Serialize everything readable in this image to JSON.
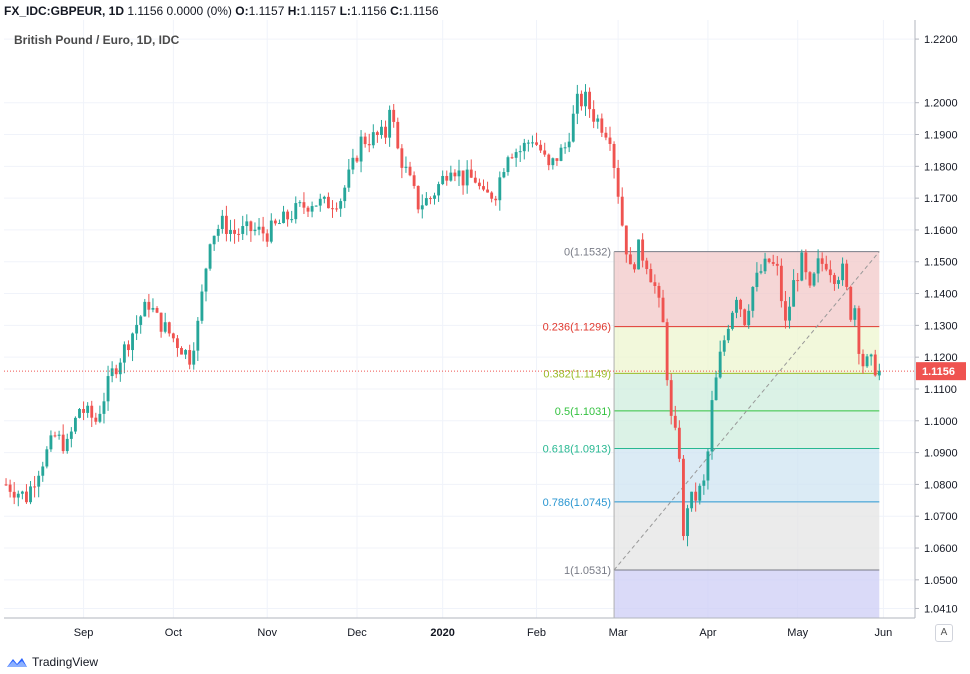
{
  "header": {
    "symbol": "FX_IDC:GBPEUR, 1D",
    "last": "1.1156",
    "change": "0.0000 (0%)",
    "o_label": "O:",
    "o": "1.1157",
    "h_label": "H:",
    "h": "1.1157",
    "l_label": "L:",
    "l": "1.1156",
    "c_label": "C:",
    "c": "1.1156"
  },
  "chart_title": "British Pound / Euro, 1D, IDC",
  "footer": {
    "brand": "TradingView"
  },
  "autoscale_label": "A",
  "colors": {
    "up": "#26a69a",
    "down": "#ef5350",
    "grid": "#f0f3fa",
    "axis": "#b2b5be",
    "price_label_bg": "#ef5350"
  },
  "chart_data": {
    "type": "candlestick",
    "ylim": [
      1.038,
      1.226
    ],
    "y_ticks": [
      1.22,
      1.2,
      1.19,
      1.18,
      1.17,
      1.16,
      1.15,
      1.14,
      1.13,
      1.12,
      1.11,
      1.1,
      1.09,
      1.08,
      1.07,
      1.06,
      1.05,
      1.041
    ],
    "x_ticks": [
      "Sep",
      "Oct",
      "Nov",
      "Dec",
      "2020",
      "Feb",
      "Mar",
      "Apr",
      "May",
      "Jun"
    ],
    "current_price": "1.1156",
    "anchors": [
      [
        0,
        1.08
      ],
      [
        5,
        1.076
      ],
      [
        8,
        1.085
      ],
      [
        12,
        1.095
      ],
      [
        15,
        1.092
      ],
      [
        18,
        1.104
      ],
      [
        22,
        1.1
      ],
      [
        26,
        1.115
      ],
      [
        28,
        1.12
      ],
      [
        33,
        1.133
      ],
      [
        35,
        1.137
      ],
      [
        37,
        1.132
      ],
      [
        41,
        1.126
      ],
      [
        45,
        1.12
      ],
      [
        47,
        1.13
      ],
      [
        50,
        1.158
      ],
      [
        53,
        1.162
      ],
      [
        56,
        1.159
      ],
      [
        60,
        1.16
      ],
      [
        64,
        1.159
      ],
      [
        67,
        1.162
      ],
      [
        71,
        1.166
      ],
      [
        75,
        1.169
      ],
      [
        78,
        1.168
      ],
      [
        82,
        1.17
      ],
      [
        85,
        1.18
      ],
      [
        87,
        1.188
      ],
      [
        90,
        1.189
      ],
      [
        93,
        1.19
      ],
      [
        94,
        1.2
      ],
      [
        96,
        1.185
      ],
      [
        99,
        1.175
      ],
      [
        101,
        1.168
      ],
      [
        104,
        1.17
      ],
      [
        107,
        1.176
      ],
      [
        109,
        1.181
      ],
      [
        112,
        1.176
      ],
      [
        115,
        1.176
      ],
      [
        117,
        1.17
      ],
      [
        120,
        1.172
      ],
      [
        123,
        1.185
      ],
      [
        126,
        1.185
      ],
      [
        129,
        1.189
      ],
      [
        131,
        1.185
      ],
      [
        133,
        1.179
      ],
      [
        135,
        1.183
      ],
      [
        137,
        1.186
      ],
      [
        140,
        1.2
      ],
      [
        142,
        1.201
      ],
      [
        144,
        1.196
      ],
      [
        146,
        1.193
      ],
      [
        148,
        1.19
      ],
      [
        150,
        1.172
      ],
      [
        151,
        1.162
      ],
      [
        153,
        1.147
      ],
      [
        155,
        1.154
      ],
      [
        157,
        1.15
      ],
      [
        159,
        1.142
      ],
      [
        161,
        1.13
      ],
      [
        163,
        1.1
      ],
      [
        165,
        1.09
      ],
      [
        166,
        1.062
      ],
      [
        167,
        1.074
      ],
      [
        169,
        1.076
      ],
      [
        171,
        1.08
      ],
      [
        172,
        1.09
      ],
      [
        173,
        1.105
      ],
      [
        175,
        1.12
      ],
      [
        177,
        1.131
      ],
      [
        179,
        1.14
      ],
      [
        181,
        1.132
      ],
      [
        183,
        1.142
      ],
      [
        185,
        1.147
      ],
      [
        187,
        1.15
      ],
      [
        189,
        1.147
      ],
      [
        191,
        1.13
      ],
      [
        193,
        1.143
      ],
      [
        195,
        1.15
      ],
      [
        197,
        1.14
      ],
      [
        199,
        1.149
      ],
      [
        201,
        1.15
      ],
      [
        203,
        1.146
      ],
      [
        205,
        1.147
      ],
      [
        207,
        1.134
      ],
      [
        208,
        1.136
      ],
      [
        209,
        1.124
      ],
      [
        210,
        1.118
      ],
      [
        212,
        1.118
      ],
      [
        214,
        1.1157
      ]
    ],
    "total_bars": 215,
    "x_month_bars": {
      "Sep": 19,
      "Oct": 41,
      "Nov": 64,
      "Dec": 86,
      "2020": 107,
      "Feb": 130,
      "Mar": 150,
      "Apr": 172,
      "May": 194,
      "Jun": 215
    },
    "fibonacci": {
      "start_bar": 149,
      "end_bar": 214,
      "trend_from": [
        149,
        1.0531
      ],
      "trend_to": [
        214,
        1.1532
      ],
      "levels": [
        {
          "ratio": 0,
          "label": "0(1.1532)",
          "price": 1.1532,
          "color": "#787b86",
          "fill": "#f2c8c8"
        },
        {
          "ratio": 0.236,
          "label": "0.236(1.1296)",
          "price": 1.1296,
          "color": "#e0392f",
          "fill": "#eef5cf"
        },
        {
          "ratio": 0.382,
          "label": "0.382(1.1149)",
          "price": 1.1149,
          "color": "#9bbc2a",
          "fill": "#cfeedd"
        },
        {
          "ratio": 0.5,
          "label": "0.5(1.1031)",
          "price": 1.1031,
          "color": "#34c240",
          "fill": "#cfeedd"
        },
        {
          "ratio": 0.618,
          "label": "0.618(1.0913)",
          "price": 1.0913,
          "color": "#27b891",
          "fill": "#cfe4f2"
        },
        {
          "ratio": 0.786,
          "label": "0.786(1.0745)",
          "price": 1.0745,
          "color": "#2a96d1",
          "fill": "#e4e4e4"
        },
        {
          "ratio": 1,
          "label": "1(1.0531)",
          "price": 1.0531,
          "color": "#787b86",
          "fill": "#cdcdf5"
        }
      ]
    }
  }
}
